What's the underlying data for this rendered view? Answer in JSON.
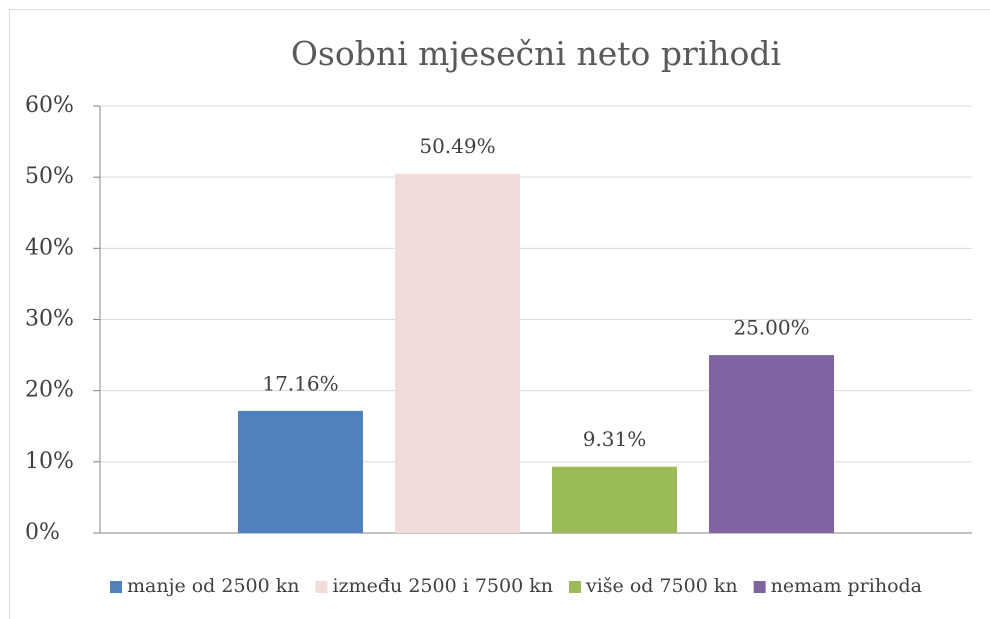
{
  "chart_data": {
    "type": "bar",
    "title": "Osobni mjesečni neto prihodi",
    "series": [
      {
        "name": "manje od 2500 kn",
        "color": "#4f81bd",
        "values": [
          17.16
        ],
        "value_labels": [
          "17.16%"
        ]
      },
      {
        "name": "između 2500 i 7500 kn",
        "color": "#f2dcdb",
        "values": [
          50.49
        ],
        "value_labels": [
          "50.49%"
        ]
      },
      {
        "name": "više od 7500 kn",
        "color": "#9bbb59",
        "values": [
          9.31
        ],
        "value_labels": [
          "9.31%"
        ]
      },
      {
        "name": "nemam prihoda",
        "color": "#8064a2",
        "values": [
          25.0
        ],
        "value_labels": [
          "25.00%"
        ]
      }
    ],
    "ylim": [
      0,
      60
    ],
    "yticks": [
      {
        "value": 0,
        "label": "0%"
      },
      {
        "value": 10,
        "label": "10%"
      },
      {
        "value": 20,
        "label": "20%"
      },
      {
        "value": 30,
        "label": "30%"
      },
      {
        "value": 40,
        "label": "40%"
      },
      {
        "value": 50,
        "label": "50%"
      },
      {
        "value": 60,
        "label": "60%"
      }
    ],
    "grid": true,
    "legend": "bottom"
  }
}
